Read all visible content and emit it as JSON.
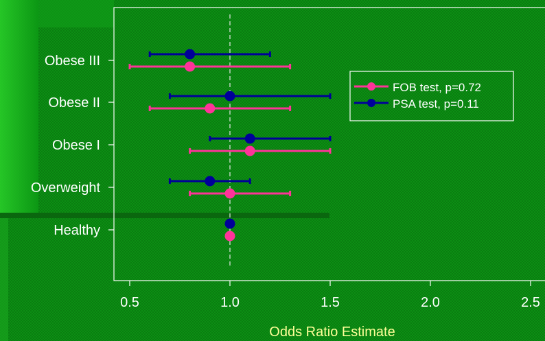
{
  "chart_data": {
    "type": "forest",
    "categories": [
      "Obese III",
      "Obese II",
      "Obese I",
      "Overweight",
      "Healthy"
    ],
    "series": [
      {
        "name": "FOB test, p=0.72",
        "color": "#ff3399",
        "estimate": [
          0.8,
          0.9,
          1.1,
          1.0,
          1.0
        ],
        "lower": [
          0.5,
          0.6,
          0.8,
          0.8,
          null
        ],
        "upper": [
          1.3,
          1.3,
          1.5,
          1.3,
          null
        ]
      },
      {
        "name": "PSA test, p=0.11",
        "color": "#000099",
        "estimate": [
          0.8,
          1.0,
          1.1,
          0.9,
          1.0
        ],
        "lower": [
          0.6,
          0.7,
          0.9,
          0.7,
          null
        ],
        "upper": [
          1.2,
          1.5,
          1.5,
          1.1,
          null
        ]
      }
    ],
    "x_ticks": [
      "0.5",
      "1.0",
      "1.5",
      "2.0",
      "2.5"
    ],
    "xlim": [
      0.4,
      2.6
    ],
    "reference_line": 1.0,
    "xlabel": "Odds Ratio Estimate",
    "legend_position": "top-right",
    "colors": {
      "background": "#0a8a12",
      "text": "#ffffff",
      "axis_title": "#ffff99",
      "reference_line": "#e8e8e8"
    }
  }
}
